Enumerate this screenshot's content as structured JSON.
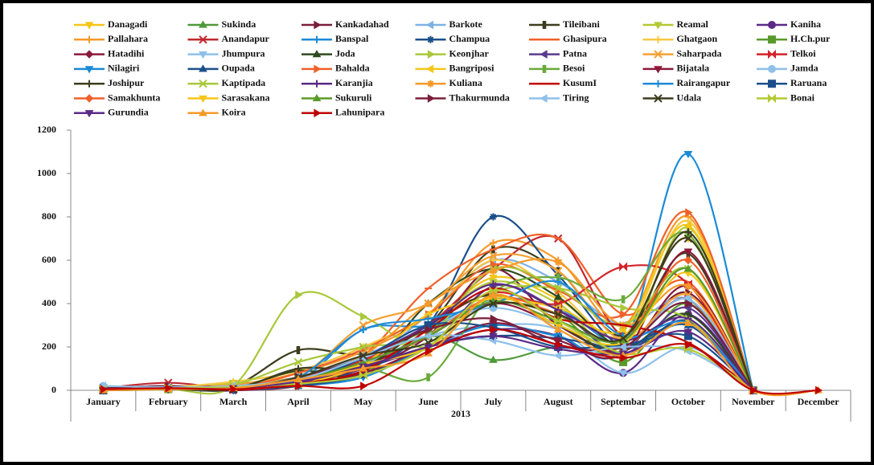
{
  "chart_data": {
    "type": "line",
    "x_label": "2013",
    "categories": [
      "January",
      "February",
      "March",
      "April",
      "May",
      "June",
      "July",
      "August",
      "Septembar",
      "October",
      "November",
      "December"
    ],
    "ylim": [
      0,
      1200
    ],
    "yticks": [
      0,
      200,
      400,
      600,
      800,
      1000,
      1200
    ],
    "smooth": true,
    "legend": "top",
    "series": [
      {
        "name": "Danagadi",
        "color": "#f5c518",
        "values": [
          5,
          10,
          30,
          60,
          150,
          300,
          520,
          420,
          250,
          700,
          0,
          null
        ]
      },
      {
        "name": "Sukinda",
        "color": "#4e9a3a",
        "values": [
          0,
          5,
          20,
          30,
          80,
          250,
          140,
          200,
          180,
          350,
          0,
          null
        ]
      },
      {
        "name": "Kankadahad",
        "color": "#7b1e3a",
        "values": [
          10,
          20,
          10,
          40,
          100,
          250,
          560,
          300,
          200,
          450,
          0,
          null
        ]
      },
      {
        "name": "Barkote",
        "color": "#7fb2e5",
        "values": [
          20,
          10,
          25,
          50,
          120,
          350,
          600,
          500,
          300,
          420,
          0,
          null
        ]
      },
      {
        "name": "Tileibani",
        "color": "#3d3d1e",
        "values": [
          5,
          15,
          20,
          185,
          170,
          300,
          650,
          550,
          250,
          630,
          0,
          null
        ]
      },
      {
        "name": "Reamal",
        "color": "#b5c934",
        "values": [
          0,
          10,
          35,
          40,
          150,
          300,
          500,
          400,
          200,
          750,
          0,
          null
        ]
      },
      {
        "name": "Kaniha",
        "color": "#5b2a86",
        "values": [
          0,
          5,
          10,
          30,
          100,
          200,
          280,
          250,
          80,
          350,
          0,
          null
        ]
      },
      {
        "name": "Pallahara",
        "color": "#f59a2a",
        "values": [
          5,
          15,
          25,
          80,
          180,
          350,
          680,
          600,
          300,
          800,
          0,
          null
        ]
      },
      {
        "name": "Anandapur",
        "color": "#c0272d",
        "values": [
          10,
          35,
          10,
          30,
          130,
          300,
          560,
          700,
          250,
          420,
          0,
          null
        ]
      },
      {
        "name": "Banspal",
        "color": "#1f8ad6",
        "values": [
          0,
          5,
          10,
          40,
          280,
          300,
          420,
          380,
          200,
          300,
          0,
          null
        ]
      },
      {
        "name": "Champua",
        "color": "#1b4f8a",
        "values": [
          0,
          5,
          0,
          60,
          90,
          300,
          800,
          530,
          200,
          320,
          0,
          null
        ]
      },
      {
        "name": "Ghasipura",
        "color": "#f0602a",
        "values": [
          0,
          5,
          10,
          60,
          160,
          470,
          650,
          700,
          350,
          500,
          0,
          null
        ]
      },
      {
        "name": "Ghatgaon",
        "color": "#f5c842",
        "values": [
          10,
          15,
          40,
          90,
          200,
          350,
          600,
          450,
          250,
          780,
          0,
          null
        ]
      },
      {
        "name": "H.Ch.pur",
        "color": "#5a9a2a",
        "values": [
          0,
          5,
          10,
          60,
          150,
          280,
          400,
          350,
          130,
          400,
          0,
          null
        ]
      },
      {
        "name": "Hatadihi",
        "color": "#8b1a3a",
        "values": [
          5,
          10,
          0,
          20,
          110,
          250,
          400,
          300,
          180,
          480,
          0,
          null
        ]
      },
      {
        "name": "Jhumpura",
        "color": "#8ec0ea",
        "values": [
          15,
          10,
          20,
          40,
          120,
          250,
          300,
          280,
          80,
          200,
          0,
          null
        ]
      },
      {
        "name": "Joda",
        "color": "#2e4a1e",
        "values": [
          0,
          5,
          10,
          90,
          80,
          400,
          560,
          430,
          200,
          350,
          0,
          null
        ]
      },
      {
        "name": "Keonjhar",
        "color": "#a8c83a",
        "values": [
          0,
          5,
          20,
          440,
          340,
          200,
          450,
          470,
          380,
          330,
          0,
          null
        ]
      },
      {
        "name": "Patna",
        "color": "#5b3a8e",
        "values": [
          0,
          10,
          0,
          30,
          120,
          200,
          480,
          370,
          170,
          380,
          0,
          null
        ]
      },
      {
        "name": "Saharpada",
        "color": "#f5a030",
        "values": [
          5,
          10,
          15,
          60,
          300,
          400,
          620,
          550,
          230,
          440,
          0,
          null
        ]
      },
      {
        "name": "Telkoi",
        "color": "#d2232a",
        "values": [
          5,
          15,
          5,
          40,
          140,
          300,
          450,
          400,
          570,
          490,
          0,
          null
        ]
      },
      {
        "name": "Nilagiri",
        "color": "#1a8ad6",
        "values": [
          0,
          5,
          0,
          20,
          60,
          200,
          300,
          250,
          200,
          1090,
          0,
          null
        ]
      },
      {
        "name": "Oupada",
        "color": "#1b4f8a",
        "values": [
          0,
          5,
          5,
          20,
          70,
          200,
          250,
          240,
          200,
          300,
          0,
          null
        ]
      },
      {
        "name": "Bahalda",
        "color": "#f0602a",
        "values": [
          5,
          10,
          10,
          80,
          190,
          350,
          580,
          460,
          350,
          820,
          0,
          null
        ]
      },
      {
        "name": "Bangriposi",
        "color": "#f5c518",
        "values": [
          0,
          5,
          10,
          30,
          120,
          350,
          420,
          380,
          280,
          760,
          0,
          null
        ]
      },
      {
        "name": "Besoi",
        "color": "#6aaa3a",
        "values": [
          0,
          5,
          10,
          40,
          100,
          60,
          450,
          520,
          420,
          720,
          0,
          null
        ]
      },
      {
        "name": "Bijatala",
        "color": "#8b1a3a",
        "values": [
          5,
          10,
          5,
          30,
          80,
          200,
          310,
          230,
          170,
          640,
          0,
          null
        ]
      },
      {
        "name": "Jamda",
        "color": "#8ec0ea",
        "values": [
          20,
          10,
          15,
          60,
          160,
          290,
          380,
          300,
          200,
          420,
          0,
          null
        ]
      },
      {
        "name": "Joshipur",
        "color": "#3d3d1e",
        "values": [
          0,
          5,
          5,
          100,
          110,
          300,
          440,
          300,
          210,
          730,
          0,
          null
        ]
      },
      {
        "name": "Kaptipada",
        "color": "#a8c83a",
        "values": [
          0,
          5,
          25,
          130,
          200,
          250,
          560,
          470,
          300,
          560,
          0,
          null
        ]
      },
      {
        "name": "Karanjia",
        "color": "#5b2a86",
        "values": [
          0,
          5,
          10,
          30,
          150,
          300,
          490,
          370,
          230,
          330,
          0,
          null
        ]
      },
      {
        "name": "Kuliana",
        "color": "#f59a2a",
        "values": [
          0,
          10,
          10,
          60,
          160,
          400,
          550,
          590,
          300,
          480,
          0,
          null
        ]
      },
      {
        "name": "KusumI",
        "color": "#c00000",
        "values": [
          5,
          15,
          0,
          30,
          90,
          280,
          470,
          330,
          300,
          220,
          0,
          null
        ]
      },
      {
        "name": "Rairangapur",
        "color": "#1f8ad6",
        "values": [
          10,
          15,
          10,
          60,
          280,
          330,
          400,
          500,
          250,
          310,
          0,
          null
        ]
      },
      {
        "name": "Raruana",
        "color": "#1b4f8a",
        "values": [
          0,
          10,
          5,
          40,
          150,
          300,
          290,
          200,
          210,
          250,
          0,
          null
        ]
      },
      {
        "name": "Samakhunta",
        "color": "#f0602a",
        "values": [
          5,
          10,
          10,
          40,
          130,
          250,
          430,
          350,
          230,
          600,
          0,
          null
        ]
      },
      {
        "name": "Sarasakana",
        "color": "#f5c518",
        "values": [
          0,
          5,
          10,
          40,
          120,
          200,
          430,
          300,
          220,
          540,
          0,
          null
        ]
      },
      {
        "name": "Sukuruli",
        "color": "#5a9a2a",
        "values": [
          0,
          5,
          10,
          50,
          130,
          250,
          410,
          320,
          230,
          560,
          0,
          null
        ]
      },
      {
        "name": "Thakurmunda",
        "color": "#7b1e3a",
        "values": [
          10,
          20,
          5,
          60,
          150,
          280,
          330,
          210,
          200,
          400,
          0,
          null
        ]
      },
      {
        "name": "Tiring",
        "color": "#8ec0ea",
        "values": [
          20,
          15,
          20,
          50,
          150,
          250,
          230,
          160,
          200,
          180,
          0,
          null
        ]
      },
      {
        "name": "Udala",
        "color": "#3d3d1e",
        "values": [
          0,
          10,
          5,
          60,
          160,
          220,
          400,
          350,
          240,
          700,
          0,
          null
        ]
      },
      {
        "name": "Bonai",
        "color": "#b5c934",
        "values": [
          5,
          10,
          15,
          30,
          70,
          200,
          460,
          320,
          170,
          190,
          0,
          null
        ]
      },
      {
        "name": "Gurundia",
        "color": "#5b2a86",
        "values": [
          0,
          5,
          10,
          40,
          110,
          200,
          250,
          190,
          170,
          270,
          0,
          null
        ]
      },
      {
        "name": "Koira",
        "color": "#f59a2a",
        "values": [
          0,
          5,
          10,
          50,
          100,
          170,
          440,
          280,
          160,
          310,
          0,
          0
        ]
      },
      {
        "name": "Lahunipara",
        "color": "#c00000",
        "values": [
          5,
          10,
          5,
          20,
          20,
          180,
          280,
          210,
          150,
          210,
          0,
          0
        ]
      }
    ]
  }
}
